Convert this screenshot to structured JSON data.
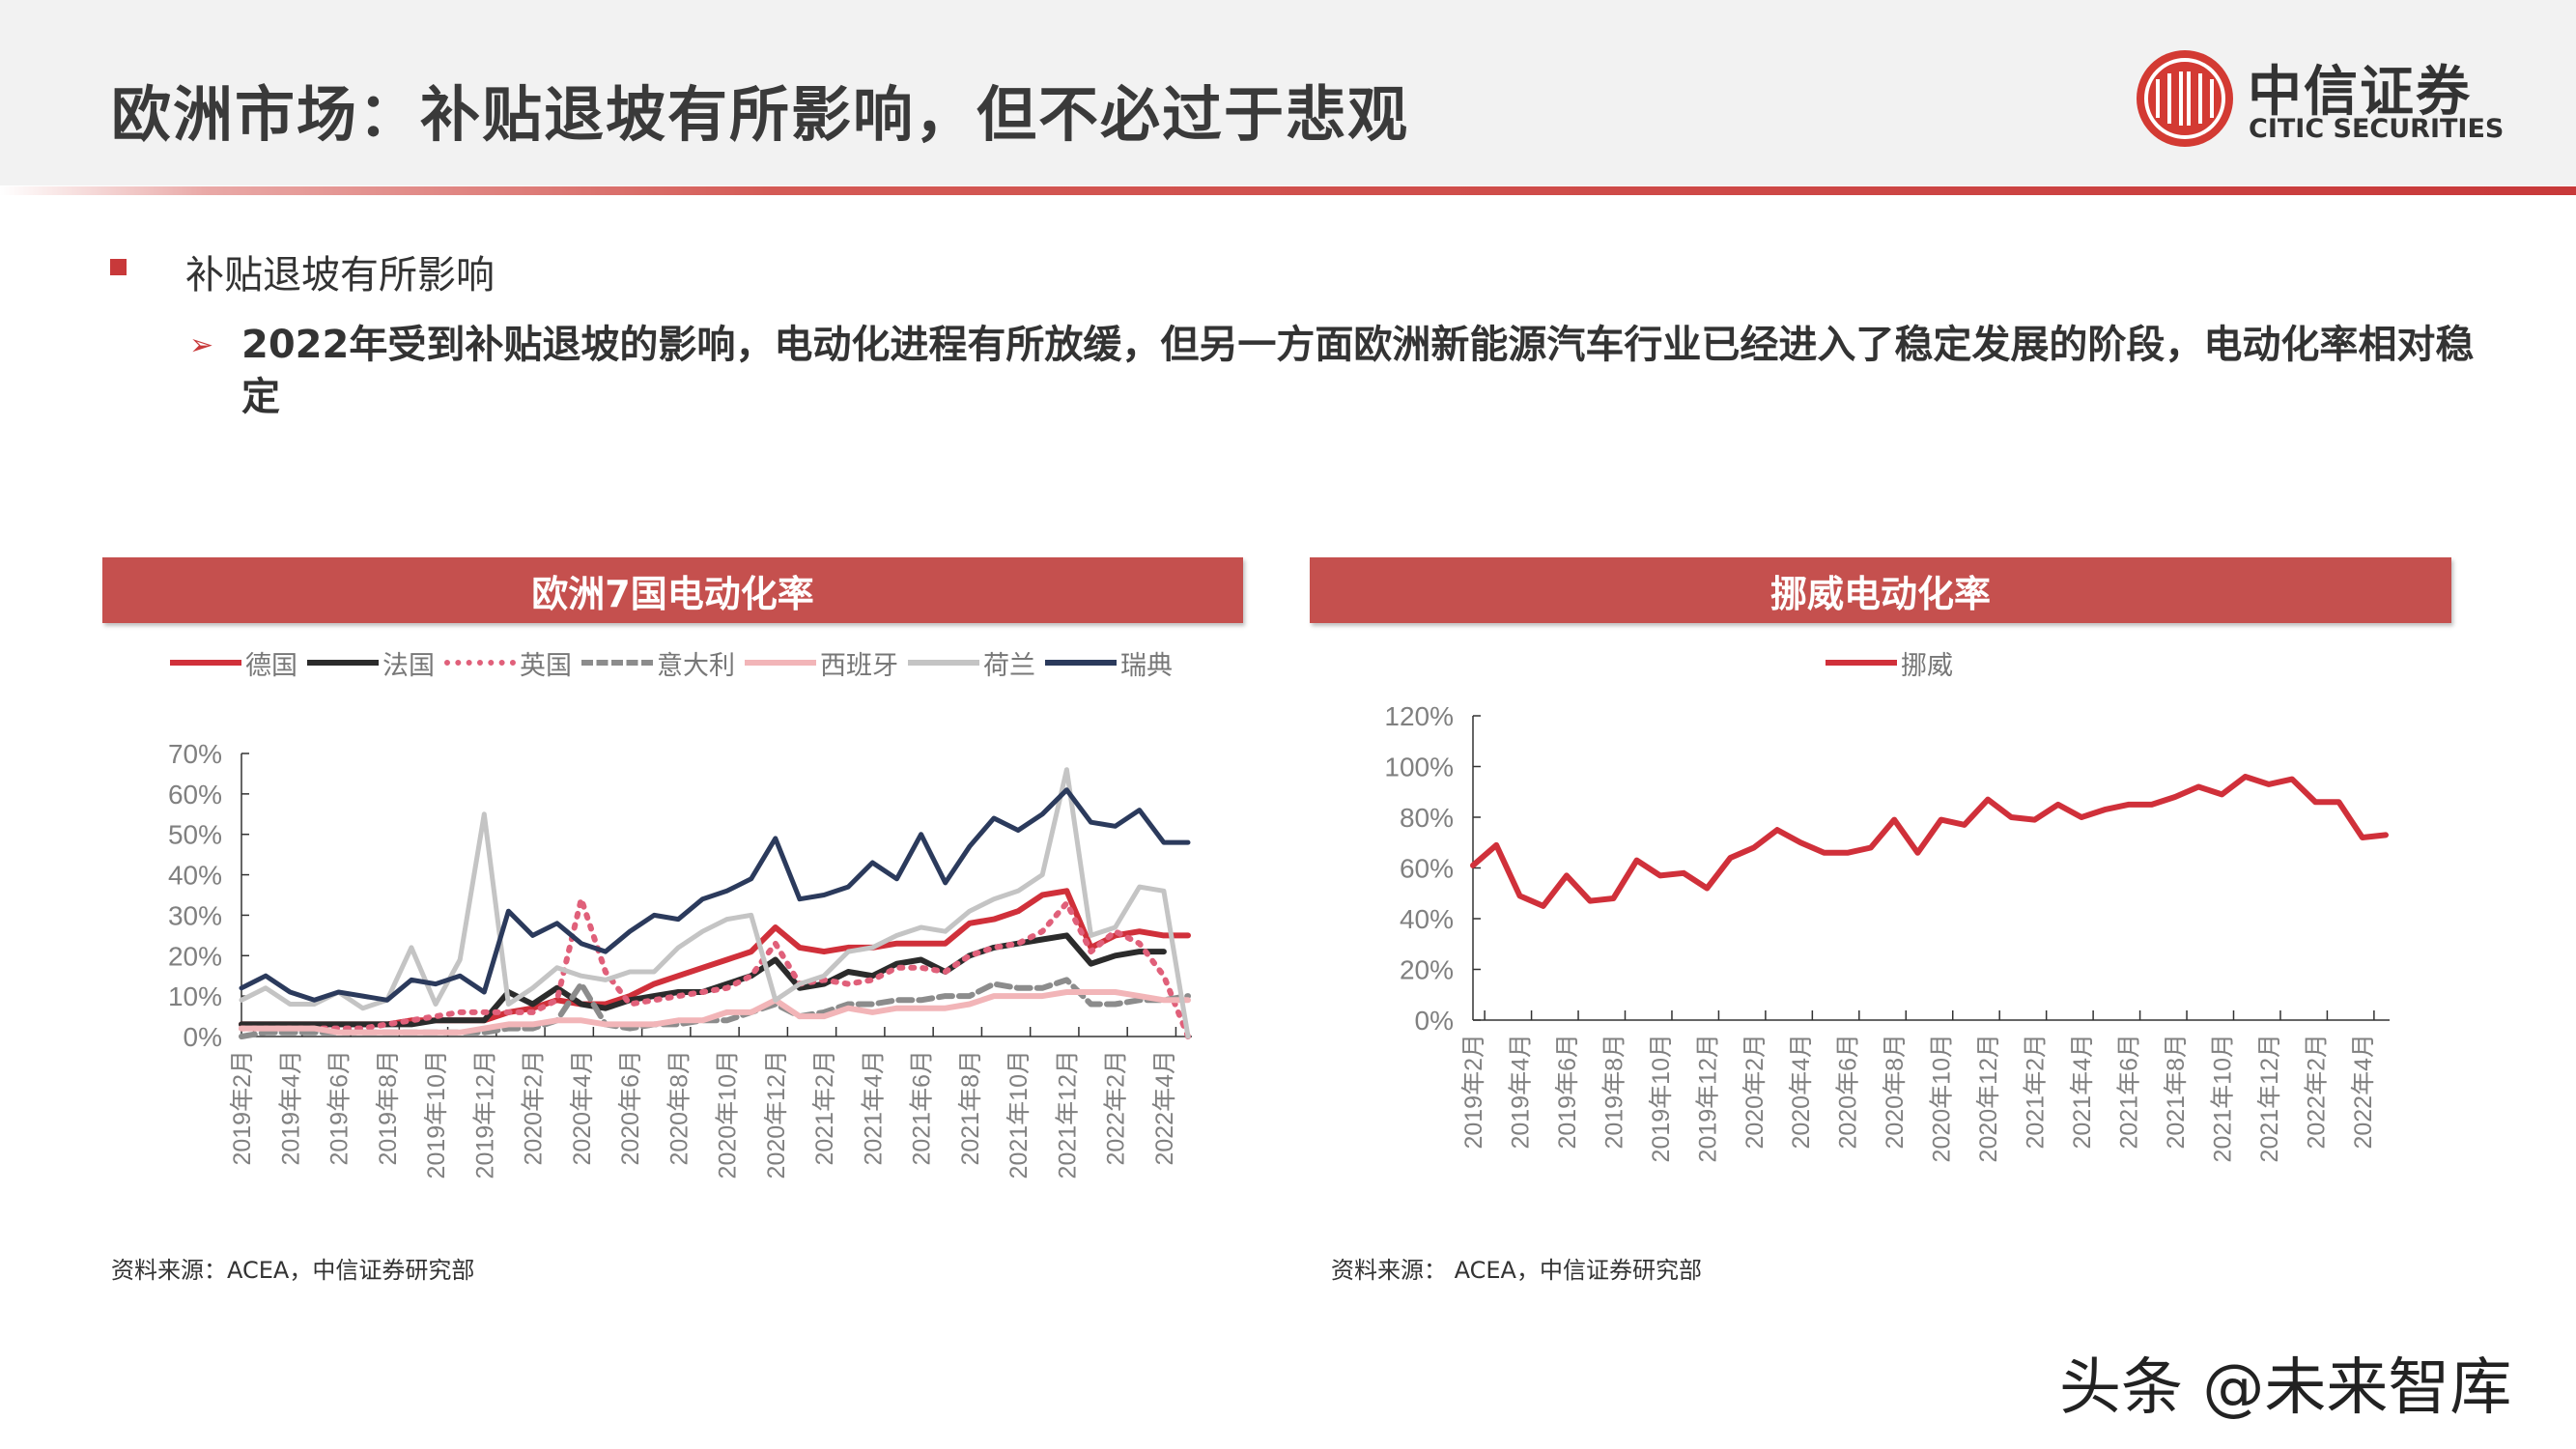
{
  "header": {
    "title": "欧洲市场：补贴退坡有所影响，但不必过于悲观",
    "logo_cn": "中信证券",
    "logo_en": "CITIC SECURITIES"
  },
  "body": {
    "bullet": "补贴退坡有所影响",
    "arrow_icon": "triangle-right-icon",
    "paragraph": "2022年受到补贴退坡的影响，电动化进程有所放缓，但另一方面欧洲新能源汽车行业已经进入了稳定发展的阶段，电动化率相对稳定"
  },
  "accent_color": "#c5504e",
  "chart_data": [
    {
      "type": "line",
      "title": "欧洲7国电动化率",
      "legend_position": "top",
      "grid": false,
      "ylim": [
        0,
        70
      ],
      "yticks": [
        "0%",
        "10%",
        "20%",
        "30%",
        "40%",
        "50%",
        "60%",
        "70%"
      ],
      "x_tick_labels": [
        "2019年2月",
        "2019年4月",
        "2019年6月",
        "2019年8月",
        "2019年10月",
        "2019年12月",
        "2020年2月",
        "2020年4月",
        "2020年6月",
        "2020年8月",
        "2020年10月",
        "2020年12月",
        "2021年2月",
        "2021年4月",
        "2021年6月",
        "2021年8月",
        "2021年10月",
        "2021年12月",
        "2022年2月",
        "2022年4月"
      ],
      "x_range": [
        "2019年2月",
        "2022年5月"
      ],
      "series": [
        {
          "name": "德国",
          "color": "#d0303a",
          "style": "solid",
          "values": [
            3,
            3,
            3,
            3,
            3,
            3,
            3,
            4,
            4,
            4,
            4,
            6,
            7,
            9,
            8,
            8,
            10,
            13,
            15,
            17,
            19,
            21,
            27,
            22,
            21,
            22,
            22,
            23,
            23,
            23,
            28,
            29,
            31,
            35,
            36,
            22,
            25,
            26,
            25,
            25
          ]
        },
        {
          "name": "法国",
          "color": "#2b2b2b",
          "style": "solid",
          "values": [
            3,
            3,
            3,
            3,
            3,
            3,
            3,
            3,
            4,
            4,
            4,
            11,
            8,
            12,
            8,
            7,
            9,
            10,
            11,
            11,
            13,
            15,
            19,
            12,
            13,
            16,
            15,
            18,
            19,
            16,
            20,
            22,
            23,
            24,
            25,
            18,
            20,
            21,
            21,
            null
          ]
        },
        {
          "name": "英国",
          "color": "#e0607a",
          "style": "dotted",
          "values": [
            2,
            2,
            2,
            2,
            2,
            2,
            3,
            4,
            5,
            6,
            6,
            6,
            6,
            9,
            34,
            16,
            8,
            9,
            10,
            11,
            12,
            15,
            23,
            13,
            14,
            13,
            14,
            17,
            17,
            16,
            20,
            22,
            23,
            26,
            33,
            21,
            26,
            23,
            15,
            0
          ]
        },
        {
          "name": "意大利",
          "color": "#8c8c8c",
          "style": "dashed",
          "values": [
            0,
            1,
            1,
            1,
            1,
            1,
            1,
            1,
            1,
            1,
            1,
            2,
            2,
            4,
            13,
            3,
            2,
            3,
            3,
            4,
            4,
            6,
            8,
            5,
            6,
            8,
            8,
            9,
            9,
            10,
            10,
            13,
            12,
            12,
            14,
            8,
            8,
            9,
            9,
            10
          ]
        },
        {
          "name": "西班牙",
          "color": "#f2b5b8",
          "style": "solid",
          "values": [
            2,
            2,
            2,
            2,
            1,
            1,
            1,
            1,
            1,
            1,
            2,
            3,
            3,
            4,
            4,
            3,
            3,
            3,
            4,
            4,
            6,
            6,
            9,
            5,
            5,
            7,
            6,
            7,
            7,
            7,
            8,
            10,
            10,
            10,
            11,
            11,
            11,
            10,
            9,
            9
          ]
        },
        {
          "name": "荷兰",
          "color": "#c4c4c4",
          "style": "solid",
          "values": [
            9,
            12,
            8,
            8,
            11,
            7,
            9,
            22,
            8,
            19,
            55,
            8,
            12,
            17,
            15,
            14,
            16,
            16,
            22,
            26,
            29,
            30,
            9,
            13,
            15,
            21,
            22,
            25,
            27,
            26,
            31,
            34,
            36,
            40,
            66,
            25,
            27,
            37,
            36,
            0
          ]
        },
        {
          "name": "瑞典",
          "color": "#2b3a5c",
          "style": "solid",
          "values": [
            12,
            15,
            11,
            9,
            11,
            10,
            9,
            14,
            13,
            15,
            11,
            31,
            25,
            28,
            23,
            21,
            26,
            30,
            29,
            34,
            36,
            39,
            49,
            34,
            35,
            37,
            43,
            39,
            50,
            38,
            47,
            54,
            51,
            55,
            61,
            53,
            52,
            56,
            48,
            48
          ]
        }
      ],
      "source": "资料来源：ACEA，中信证券研究部"
    },
    {
      "type": "line",
      "title": "挪威电动化率",
      "legend_position": "top",
      "grid": false,
      "ylim": [
        0,
        120
      ],
      "yticks": [
        "0%",
        "20%",
        "40%",
        "60%",
        "80%",
        "100%",
        "120%"
      ],
      "x_tick_labels": [
        "2019年2月",
        "2019年4月",
        "2019年6月",
        "2019年8月",
        "2019年10月",
        "2019年12月",
        "2020年2月",
        "2020年4月",
        "2020年6月",
        "2020年8月",
        "2020年10月",
        "2020年12月",
        "2021年2月",
        "2021年4月",
        "2021年6月",
        "2021年8月",
        "2021年10月",
        "2021年12月",
        "2022年2月",
        "2022年4月"
      ],
      "x_range": [
        "2019年2月",
        "2022年5月"
      ],
      "series": [
        {
          "name": "挪威",
          "color": "#d0303a",
          "style": "solid",
          "values": [
            61,
            69,
            49,
            45,
            57,
            47,
            48,
            63,
            57,
            58,
            52,
            64,
            68,
            75,
            70,
            66,
            66,
            68,
            79,
            66,
            79,
            77,
            87,
            80,
            79,
            85,
            80,
            83,
            85,
            85,
            88,
            92,
            89,
            96,
            93,
            95,
            86,
            86,
            72,
            73
          ]
        }
      ],
      "source": "资料来源： ACEA，中信证券研究部"
    }
  ],
  "watermark": "头条 @未来智库"
}
